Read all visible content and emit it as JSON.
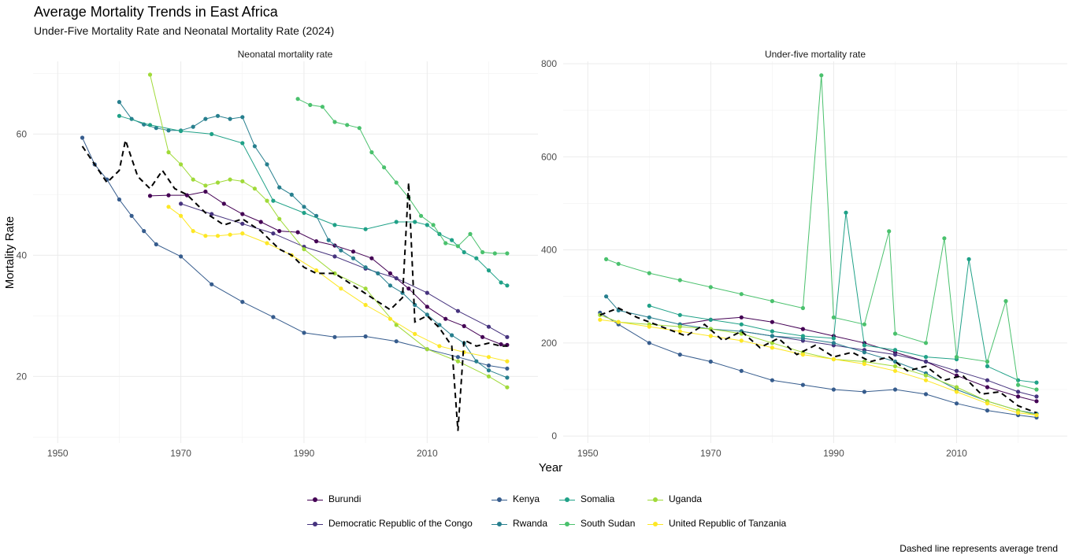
{
  "title": "Average Mortality Trends in East Africa",
  "subtitle": "Under-Five Mortality Rate and Neonatal Mortality Rate (2024)",
  "caption": "Dashed line represents average trend",
  "chart_data": [
    {
      "type": "line",
      "panel": "Neonatal mortality rate",
      "xlabel": "Year",
      "ylabel": "Mortality Rate",
      "xlim": [
        1946,
        2028
      ],
      "ylim": [
        9,
        72
      ],
      "xticks": [
        1950,
        1970,
        1990,
        2010
      ],
      "yticks": [
        20,
        40,
        60
      ],
      "grid": true,
      "series": [
        {
          "name": "Burundi",
          "x": [
            1965,
            1968,
            1971,
            1974,
            1977,
            1980,
            1983,
            1986,
            1989,
            1992,
            1995,
            1998,
            2001,
            2004,
            2007,
            2010,
            2013,
            2016,
            2019,
            2022,
            2023
          ],
          "y": [
            49.8,
            49.9,
            49.9,
            50.5,
            48.5,
            46.8,
            45.5,
            44,
            43.8,
            42.3,
            41.6,
            40.6,
            39.5,
            37,
            34.5,
            31.5,
            29.5,
            28.3,
            26.5,
            25.3,
            25.2
          ]
        },
        {
          "name": "Democratic Republic of the Congo",
          "x": [
            1970,
            1975,
            1980,
            1985,
            1990,
            1995,
            2000,
            2005,
            2010,
            2015,
            2020,
            2023
          ],
          "y": [
            48.5,
            46.8,
            45.2,
            43.6,
            41.4,
            39.8,
            37.8,
            36.2,
            33.8,
            30.8,
            28.2,
            26.5
          ]
        },
        {
          "name": "Kenya",
          "x": [
            1954,
            1956,
            1958,
            1960,
            1962,
            1964,
            1966,
            1970,
            1975,
            1980,
            1985,
            1990,
            1995,
            2000,
            2005,
            2010,
            2015,
            2020,
            2023
          ],
          "y": [
            59.4,
            55,
            52.5,
            49.2,
            46.5,
            44,
            41.8,
            39.8,
            35.2,
            32.3,
            29.8,
            27.2,
            26.5,
            26.6,
            25.8,
            24.5,
            23.2,
            21.8,
            21.3
          ]
        },
        {
          "name": "Rwanda",
          "x": [
            1960,
            1962,
            1964,
            1966,
            1968,
            1970,
            1972,
            1974,
            1976,
            1978,
            1980,
            1982,
            1984,
            1986,
            1988,
            1990,
            1992,
            1994,
            1996,
            1998,
            2000,
            2002,
            2004,
            2006,
            2008,
            2010,
            2012,
            2014,
            2016,
            2018,
            2020,
            2023
          ],
          "y": [
            65.3,
            62.5,
            61.6,
            61,
            60.6,
            60.6,
            61.2,
            62.5,
            63,
            62.5,
            62.8,
            58,
            55,
            51.2,
            50,
            48,
            46.5,
            42.5,
            40.8,
            39.5,
            38,
            37,
            35,
            33.8,
            31.8,
            30.2,
            28.5,
            26.8,
            25.5,
            22.5,
            21,
            19.8
          ]
        },
        {
          "name": "Somalia",
          "x": [
            1960,
            1965,
            1970,
            1975,
            1980,
            1985,
            1990,
            1995,
            2000,
            2005,
            2008,
            2010,
            2012,
            2014,
            2016,
            2018,
            2020,
            2022,
            2023
          ],
          "y": [
            63,
            61.5,
            60.5,
            60,
            58.5,
            49,
            47,
            45,
            44.3,
            45.5,
            45.5,
            45,
            43.5,
            42.5,
            40.5,
            39.5,
            37.5,
            35.5,
            35
          ]
        },
        {
          "name": "South Sudan",
          "x": [
            1989,
            1991,
            1993,
            1995,
            1997,
            1999,
            2001,
            2003,
            2005,
            2007,
            2009,
            2011,
            2013,
            2015,
            2017,
            2019,
            2021,
            2023
          ],
          "y": [
            65.8,
            64.8,
            64.5,
            62,
            61.5,
            61,
            57,
            54.5,
            52,
            49.5,
            46.5,
            45,
            42,
            41.5,
            43.5,
            40.5,
            40.3,
            40.3
          ]
        },
        {
          "name": "Uganda",
          "x": [
            1965,
            1968,
            1970,
            1972,
            1974,
            1976,
            1978,
            1980,
            1982,
            1984,
            1986,
            1990,
            1995,
            2000,
            2005,
            2010,
            2015,
            2020,
            2023
          ],
          "y": [
            69.8,
            57,
            55,
            52.5,
            51.5,
            52,
            52.5,
            52.2,
            51,
            49,
            46,
            41,
            37,
            34.5,
            28.5,
            24.5,
            22.5,
            20,
            18.2
          ]
        },
        {
          "name": "United Republic of Tanzania",
          "x": [
            1968,
            1970,
            1972,
            1974,
            1976,
            1978,
            1980,
            1984,
            1988,
            1992,
            1996,
            2000,
            2004,
            2008,
            2012,
            2016,
            2020,
            2023
          ],
          "y": [
            48,
            46.5,
            44,
            43.2,
            43.2,
            43.4,
            43.6,
            42,
            40,
            37.5,
            34.5,
            31.8,
            29.5,
            27,
            25,
            24,
            23.2,
            22.5
          ]
        },
        {
          "name": "Average",
          "x": [
            1954,
            1956,
            1958,
            1960,
            1961,
            1963,
            1965,
            1967,
            1969,
            1971,
            1974,
            1977,
            1980,
            1983,
            1986,
            1988,
            1990,
            1992,
            1995,
            1998,
            2001,
            2004,
            2006,
            2007,
            2008,
            2010,
            2012,
            2014,
            2015,
            2016,
            2018,
            2020,
            2022,
            2023
          ],
          "y": [
            58,
            55,
            52,
            54,
            59,
            53,
            51,
            54,
            51,
            50,
            47,
            45,
            46,
            44,
            41,
            40,
            38,
            37,
            37,
            35,
            33,
            31,
            33,
            52,
            29,
            30,
            28,
            25,
            11,
            26,
            25,
            25.5,
            25,
            25
          ]
        }
      ]
    },
    {
      "type": "line",
      "panel": "Under-five mortality rate",
      "xlabel": "Year",
      "ylabel": "Mortality Rate",
      "xlim": [
        1946,
        2028
      ],
      "ylim": [
        -15,
        805
      ],
      "xticks": [
        1950,
        1970,
        1990,
        2010
      ],
      "yticks": [
        0,
        200,
        400,
        600,
        800
      ],
      "grid": true,
      "series": [
        {
          "name": "Burundi",
          "x": [
            1965,
            1970,
            1975,
            1980,
            1985,
            1990,
            1995,
            2000,
            2005,
            2010,
            2015,
            2020,
            2023
          ],
          "y": [
            240,
            250,
            255,
            245,
            230,
            215,
            200,
            180,
            160,
            130,
            105,
            85,
            75
          ]
        },
        {
          "name": "Democratic Republic of the Congo",
          "x": [
            1975,
            1980,
            1985,
            1990,
            1995,
            2000,
            2005,
            2010,
            2015,
            2020,
            2023
          ],
          "y": [
            225,
            215,
            205,
            195,
            185,
            175,
            160,
            140,
            120,
            95,
            85
          ]
        },
        {
          "name": "Kenya",
          "x": [
            1952,
            1955,
            1960,
            1965,
            1970,
            1975,
            1980,
            1985,
            1990,
            1995,
            2000,
            2005,
            2010,
            2015,
            2020,
            2023
          ],
          "y": [
            265,
            240,
            200,
            175,
            160,
            140,
            120,
            110,
            100,
            95,
            100,
            90,
            70,
            55,
            45,
            40
          ]
        },
        {
          "name": "Rwanda",
          "x": [
            1953,
            1955,
            1960,
            1965,
            1970,
            1975,
            1980,
            1985,
            1990,
            1995,
            2000,
            2005,
            2010,
            2015,
            2020,
            2023
          ],
          "y": [
            300,
            270,
            255,
            240,
            230,
            225,
            215,
            210,
            200,
            180,
            160,
            135,
            100,
            75,
            55,
            48
          ]
        },
        {
          "name": "Somalia",
          "x": [
            1960,
            1965,
            1970,
            1975,
            1980,
            1985,
            1990,
            1992,
            1995,
            2000,
            2005,
            2010,
            2012,
            2015,
            2020,
            2023
          ],
          "y": [
            280,
            260,
            250,
            240,
            225,
            215,
            210,
            480,
            195,
            185,
            170,
            165,
            380,
            150,
            120,
            115
          ]
        },
        {
          "name": "South Sudan",
          "x": [
            1953,
            1955,
            1960,
            1965,
            1970,
            1975,
            1980,
            1985,
            1988,
            1990,
            1995,
            1999,
            2000,
            2005,
            2008,
            2010,
            2015,
            2018,
            2020,
            2023
          ],
          "y": [
            380,
            370,
            350,
            335,
            320,
            305,
            290,
            275,
            775,
            255,
            240,
            440,
            220,
            200,
            425,
            170,
            160,
            290,
            110,
            100
          ]
        },
        {
          "name": "Uganda",
          "x": [
            1952,
            1955,
            1960,
            1965,
            1970,
            1975,
            1980,
            1985,
            1990,
            1995,
            2000,
            2005,
            2010,
            2015,
            2020,
            2023
          ],
          "y": [
            260,
            245,
            240,
            235,
            230,
            220,
            200,
            180,
            165,
            160,
            150,
            130,
            105,
            75,
            55,
            45
          ]
        },
        {
          "name": "United Republic of Tanzania",
          "x": [
            1952,
            1955,
            1960,
            1965,
            1970,
            1975,
            1980,
            1985,
            1990,
            1995,
            2000,
            2005,
            2010,
            2015,
            2020,
            2023
          ],
          "y": [
            250,
            245,
            235,
            225,
            215,
            205,
            190,
            175,
            165,
            155,
            140,
            120,
            95,
            70,
            50,
            45
          ]
        },
        {
          "name": "Average",
          "x": [
            1952,
            1955,
            1958,
            1960,
            1963,
            1966,
            1969,
            1972,
            1975,
            1978,
            1981,
            1984,
            1987,
            1990,
            1993,
            1996,
            1999,
            2002,
            2005,
            2008,
            2011,
            2014,
            2017,
            2020,
            2023
          ],
          "y": [
            260,
            275,
            255,
            245,
            230,
            215,
            240,
            205,
            225,
            190,
            210,
            175,
            195,
            170,
            180,
            160,
            170,
            140,
            150,
            120,
            130,
            90,
            95,
            65,
            50
          ]
        }
      ]
    }
  ],
  "colors": {
    "Burundi": "#440154",
    "Democratic Republic of the Congo": "#46337e",
    "Kenya": "#365c8d",
    "Rwanda": "#277f8e",
    "Somalia": "#1fa187",
    "South Sudan": "#4ac16d",
    "Uganda": "#a0da39",
    "United Republic of Tanzania": "#fde725",
    "Average": "#000000"
  },
  "legend": {
    "position": "bottom",
    "items": [
      {
        "label": "Burundi"
      },
      {
        "label": "Democratic Republic of the Congo"
      },
      {
        "label": "Kenya"
      },
      {
        "label": "Rwanda"
      },
      {
        "label": "Somalia"
      },
      {
        "label": "South Sudan"
      },
      {
        "label": "Uganda"
      },
      {
        "label": "United Republic of Tanzania"
      }
    ]
  }
}
